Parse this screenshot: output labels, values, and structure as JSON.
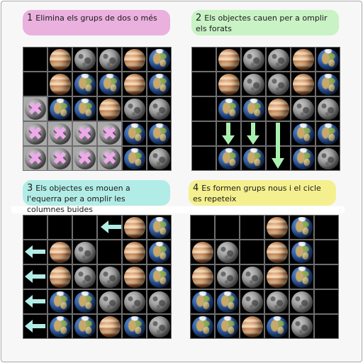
{
  "panels": [
    {
      "step": "1",
      "caption": "Elimina els grups de dos o més",
      "color": "#eab0de",
      "grid": [
        [
          "empty",
          "jupiter",
          "moon",
          "moon",
          "jupiter",
          "earth"
        ],
        [
          "empty",
          "jupiter",
          "earth",
          "earth",
          "jupiter",
          "earth"
        ],
        [
          "x",
          "earth",
          "earth",
          "jupiter",
          "moon",
          "moon"
        ],
        [
          "x",
          "x",
          "x",
          "x",
          "earth",
          "earth"
        ],
        [
          "x",
          "x",
          "x",
          "x",
          "earth",
          "moon"
        ]
      ]
    },
    {
      "step": "2",
      "caption": "Els objectes cauen per a omplir els forats",
      "color": "#c9f2c5",
      "grid": [
        [
          "empty",
          "jupiter",
          "moon",
          "moon",
          "jupiter",
          "earth"
        ],
        [
          "empty",
          "jupiter",
          "moon",
          "moon",
          "jupiter",
          "earth"
        ],
        [
          "empty",
          "earth",
          "earth",
          "jupiter",
          "moon",
          "moon"
        ],
        [
          "empty",
          "empty",
          "empty",
          "empty",
          "earth",
          "earth"
        ],
        [
          "empty",
          "earth",
          "earth",
          "empty",
          "earth",
          "moon"
        ]
      ]
    },
    {
      "step": "3",
      "caption": "Els objectes es mouen a l'equerra per a omplir les columnes buides",
      "color": "#b2ece6",
      "grid": [
        [
          "empty",
          "empty",
          "empty",
          "empty",
          "jupiter",
          "earth"
        ],
        [
          "empty",
          "jupiter",
          "moon",
          "empty",
          "jupiter",
          "earth"
        ],
        [
          "empty",
          "jupiter",
          "moon",
          "moon",
          "jupiter",
          "earth"
        ],
        [
          "empty",
          "earth",
          "earth",
          "moon",
          "moon",
          "moon"
        ],
        [
          "empty",
          "earth",
          "earth",
          "jupiter",
          "earth",
          "moon"
        ]
      ]
    },
    {
      "step": "4",
      "caption": "Es formen grups nous i el cicle es repeteix",
      "color": "#f5f08f",
      "grid": [
        [
          "empty",
          "empty",
          "empty",
          "jupiter",
          "earth",
          "empty"
        ],
        [
          "jupiter",
          "moon",
          "empty",
          "jupiter",
          "earth",
          "empty"
        ],
        [
          "jupiter",
          "moon",
          "moon",
          "jupiter",
          "earth",
          "empty"
        ],
        [
          "earth",
          "earth",
          "moon",
          "moon",
          "moon",
          "empty"
        ],
        [
          "earth",
          "earth",
          "jupiter",
          "earth",
          "moon",
          "empty"
        ]
      ]
    }
  ],
  "arrow_color": "#a9f0b0",
  "arrow_color_left": "#b2ece6"
}
